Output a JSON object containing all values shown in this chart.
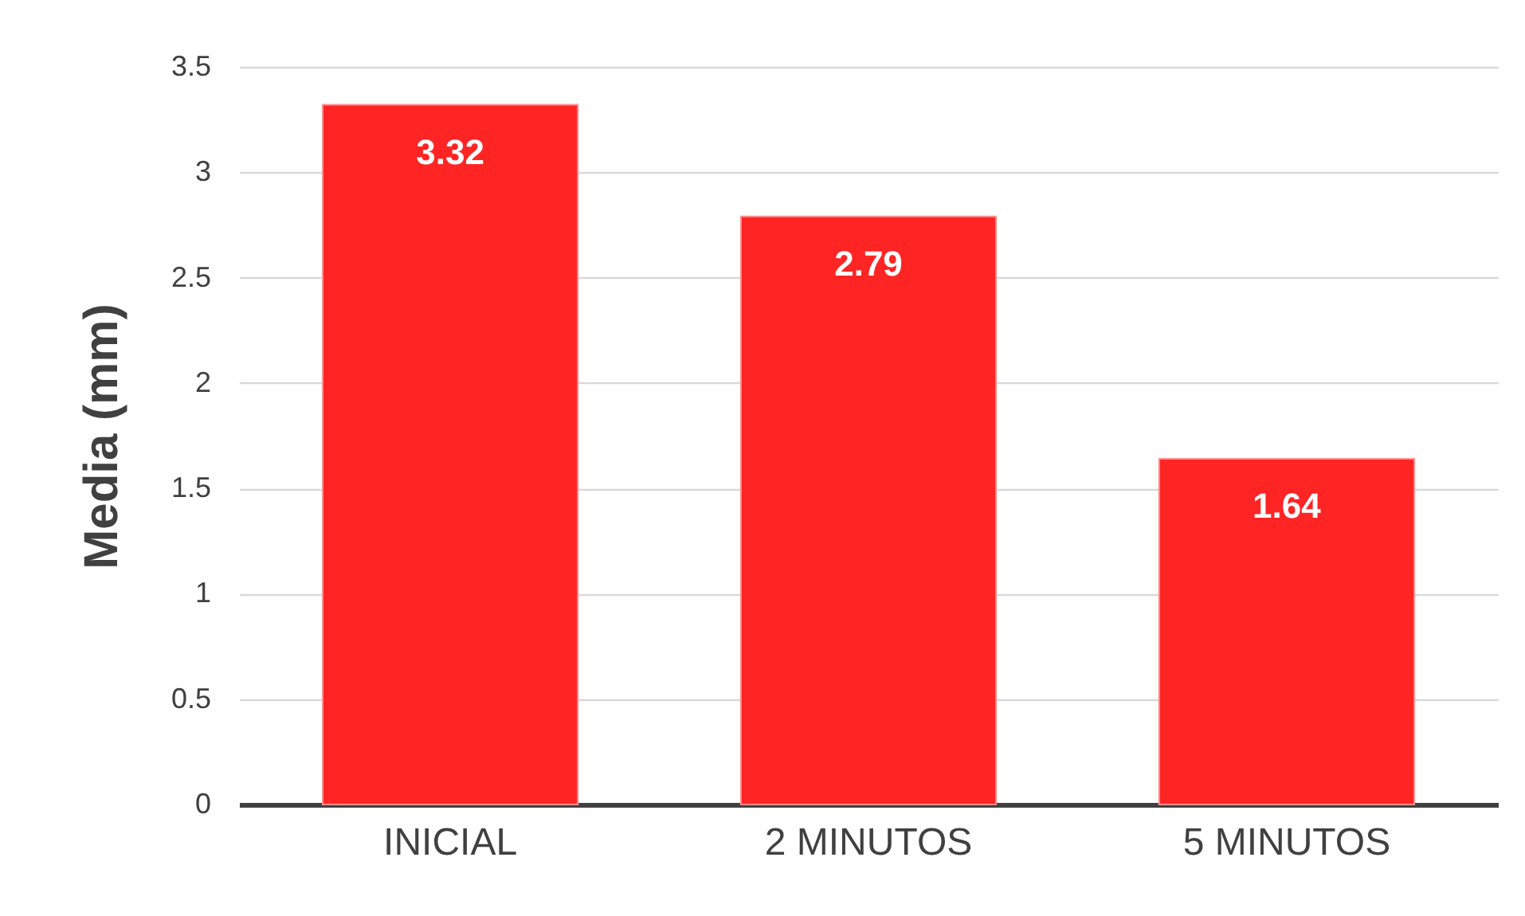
{
  "chart_data": {
    "type": "bar",
    "ylabel": "Media (mm)",
    "categories": [
      "INICIAL",
      "2 MINUTOS",
      "5 MINUTOS"
    ],
    "values": [
      3.32,
      2.79,
      1.64
    ],
    "color": "#ff2525",
    "ylim": [
      0,
      3.5
    ],
    "yticks": [
      0,
      0.5,
      1,
      1.5,
      2,
      2.5,
      3,
      3.5
    ],
    "grid": "y",
    "data_labels": true
  }
}
